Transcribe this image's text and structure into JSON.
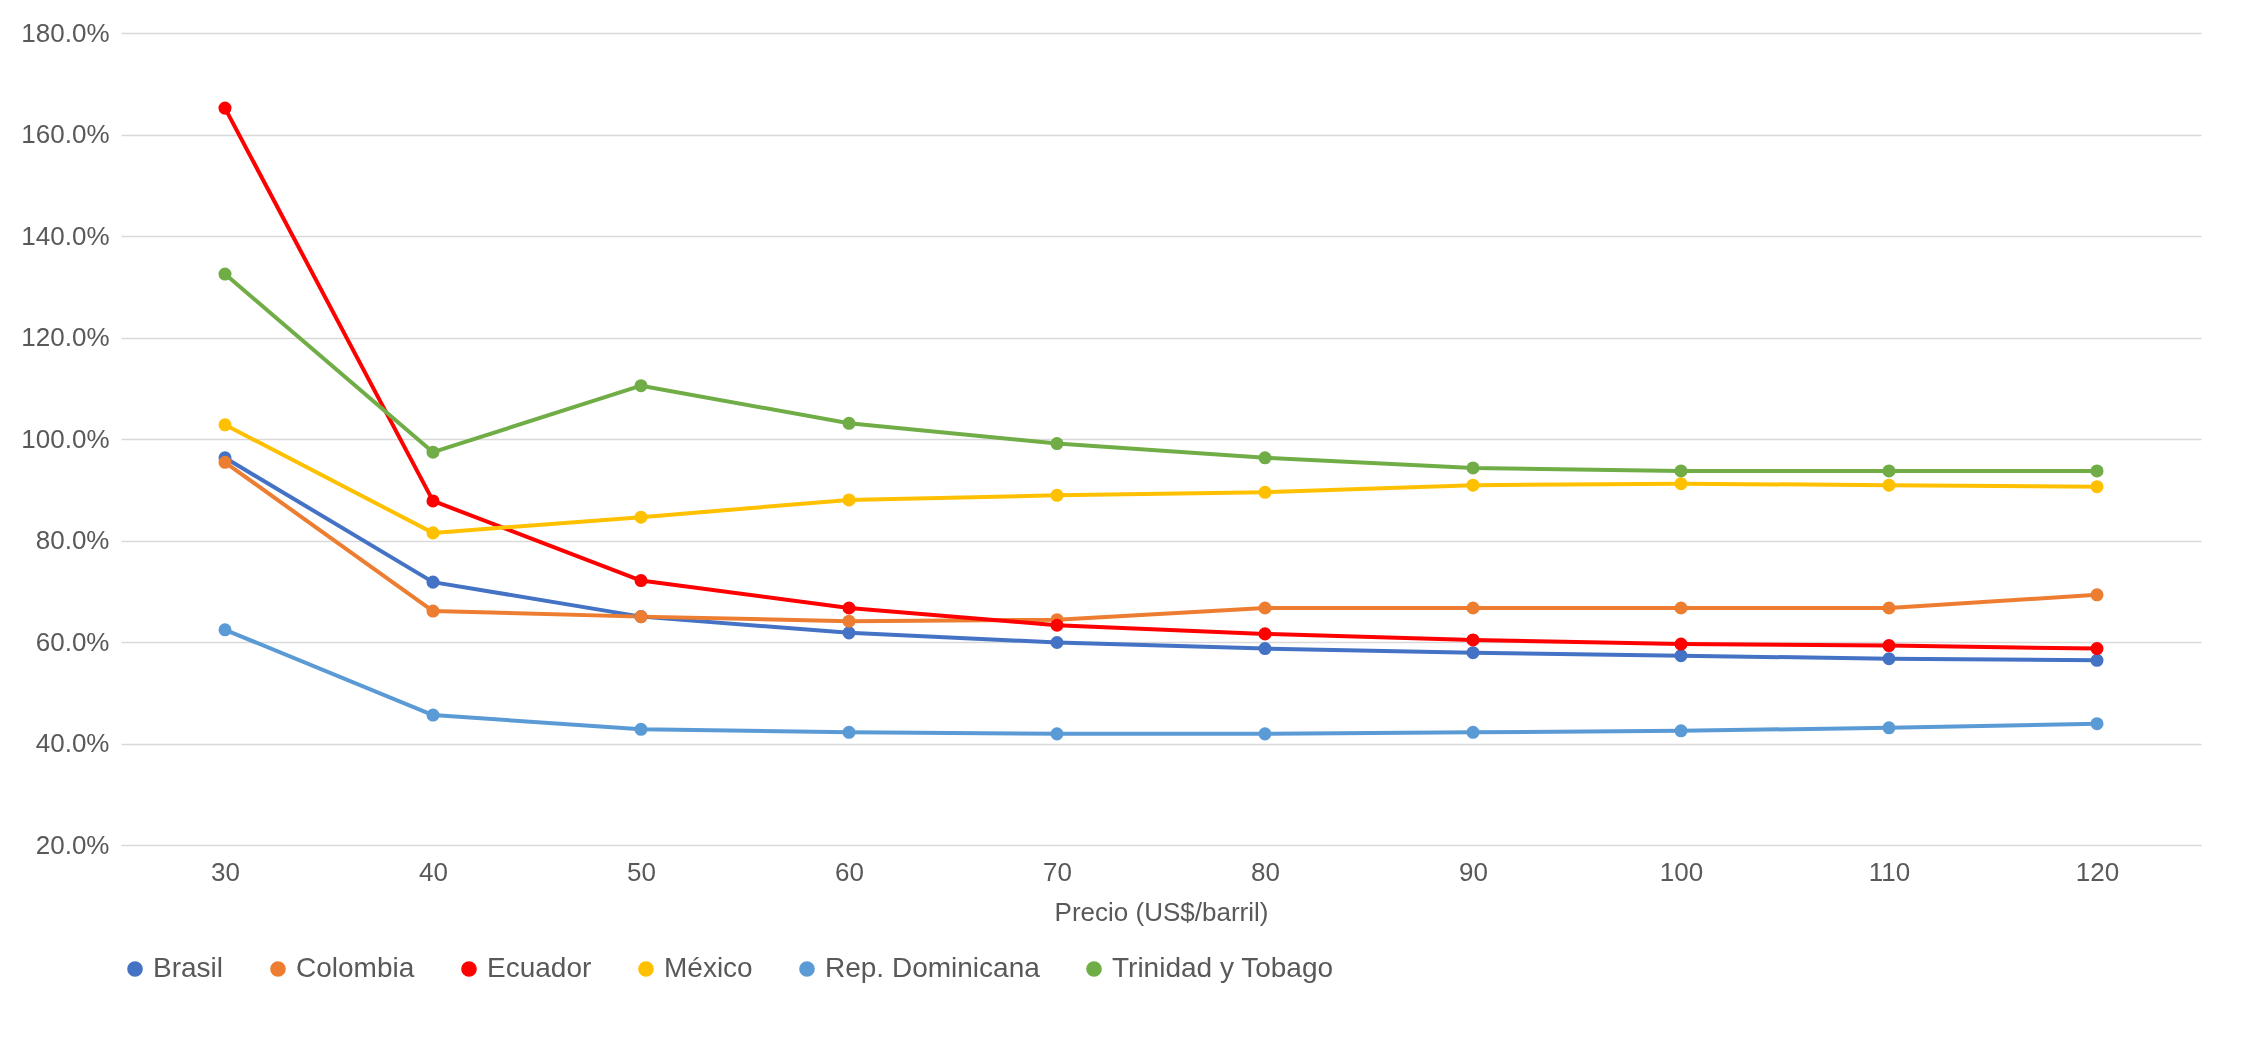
{
  "chart_data": {
    "type": "line",
    "xlabel": "Precio (US$/barril)",
    "categories": [
      "30",
      "40",
      "50",
      "60",
      "70",
      "80",
      "90",
      "100",
      "110",
      "120"
    ],
    "series": [
      {
        "name": "Brasil",
        "color": "#4472c4",
        "values": [
          96.3,
          71.8,
          65.0,
          61.8,
          59.9,
          58.7,
          57.9,
          57.3,
          56.7,
          56.4
        ]
      },
      {
        "name": "Colombia",
        "color": "#ed7d31",
        "values": [
          95.4,
          66.1,
          65.0,
          64.1,
          64.4,
          66.7,
          66.7,
          66.7,
          66.7,
          69.3
        ]
      },
      {
        "name": "Ecuador",
        "color": "#ff0000",
        "values": [
          165.2,
          87.8,
          72.1,
          66.7,
          63.3,
          61.6,
          60.4,
          59.6,
          59.3,
          58.7
        ]
      },
      {
        "name": "México",
        "color": "#ffc000",
        "values": [
          102.8,
          81.5,
          84.6,
          88.0,
          88.9,
          89.5,
          90.9,
          91.2,
          90.9,
          90.6
        ]
      },
      {
        "name": "Rep. Dominicana",
        "color": "#5b9bd5",
        "values": [
          62.4,
          45.6,
          42.8,
          42.2,
          41.9,
          41.9,
          42.2,
          42.5,
          43.1,
          43.9
        ]
      },
      {
        "name": "Trinidad y Tobago",
        "color": "#70ad47",
        "values": [
          132.5,
          97.4,
          110.5,
          103.1,
          99.1,
          96.3,
          94.3,
          93.7,
          93.7,
          93.7
        ]
      }
    ],
    "ylim": [
      20,
      180
    ],
    "yticks": [
      {
        "value": 20,
        "label": "20.0%"
      },
      {
        "value": 40,
        "label": "40.0%"
      },
      {
        "value": 60,
        "label": "60.0%"
      },
      {
        "value": 80,
        "label": "80.0%"
      },
      {
        "value": 100,
        "label": "100.0%"
      },
      {
        "value": 120,
        "label": "120.0%"
      },
      {
        "value": 140,
        "label": "140.0%"
      },
      {
        "value": 160,
        "label": "160.0%"
      },
      {
        "value": 180,
        "label": "180.0%"
      }
    ],
    "grid": "y",
    "legend": "bottom",
    "marker": "circle",
    "line_style": "solid"
  }
}
